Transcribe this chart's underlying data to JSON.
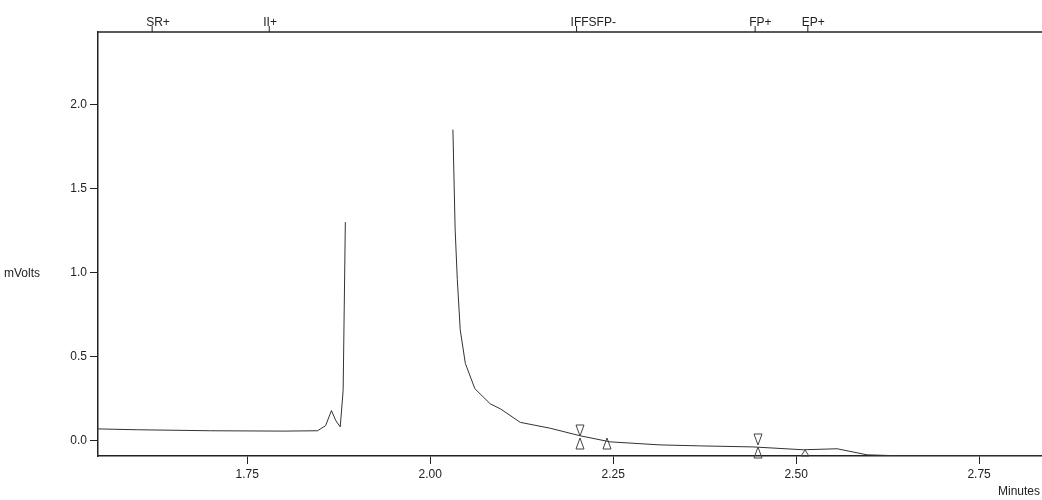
{
  "chart_data": {
    "type": "line",
    "xlabel": "Minutes",
    "ylabel": "mVolts",
    "xlim": [
      1.546,
      2.836
    ],
    "ylim": [
      -0.09,
      2.43
    ],
    "xticks": [
      1.75,
      {
        "value": 2,
        "label": "2.00"
      },
      2.25,
      {
        "value": 2.5,
        "label": "2.50"
      },
      2.75
    ],
    "yticks": [
      {
        "value": 0,
        "label": "0.0"
      },
      {
        "value": 0.5,
        "label": "0.5"
      },
      {
        "value": 1,
        "label": "1.0"
      },
      {
        "value": 1.5,
        "label": "1.5"
      },
      {
        "value": 2,
        "label": "2.0"
      }
    ],
    "grid": false,
    "legend": false,
    "marker": "none",
    "line_style": "solid",
    "ref_lines": [
      {
        "axis": "x",
        "value": 1.62,
        "label": "SR+"
      },
      {
        "axis": "x",
        "value": 1.78,
        "label": "II+"
      },
      {
        "axis": "x",
        "value": 2.2,
        "label": "IFFSFP-"
      },
      {
        "axis": "x",
        "value": 2.444,
        "label": "FP+"
      },
      {
        "axis": "x",
        "value": 2.516,
        "label": "EP+"
      }
    ],
    "series": [
      {
        "color": "#333333",
        "x": [
          1.546,
          1.6,
          1.7,
          1.8,
          1.846,
          1.857,
          1.865,
          1.871,
          1.877,
          1.881,
          1.884,
          1.95,
          2.031,
          2.034,
          2.037,
          2.041,
          2.048,
          2.061,
          2.082,
          2.096,
          2.123,
          2.164,
          2.205,
          2.246,
          2.314,
          2.369,
          2.441,
          2.51,
          2.556,
          2.597,
          2.642,
          2.836
        ],
        "values": [
          0.071,
          0.066,
          0.06,
          0.058,
          0.06,
          0.09,
          0.18,
          0.12,
          0.083,
          0.3,
          1.3,
          null,
          1.85,
          1.26,
          0.96,
          0.66,
          0.46,
          0.31,
          0.22,
          0.19,
          0.11,
          0.075,
          0.03,
          -0.006,
          -0.024,
          -0.03,
          -0.036,
          -0.053,
          -0.047,
          -0.083,
          -0.089,
          -0.089
        ]
      }
    ]
  }
}
